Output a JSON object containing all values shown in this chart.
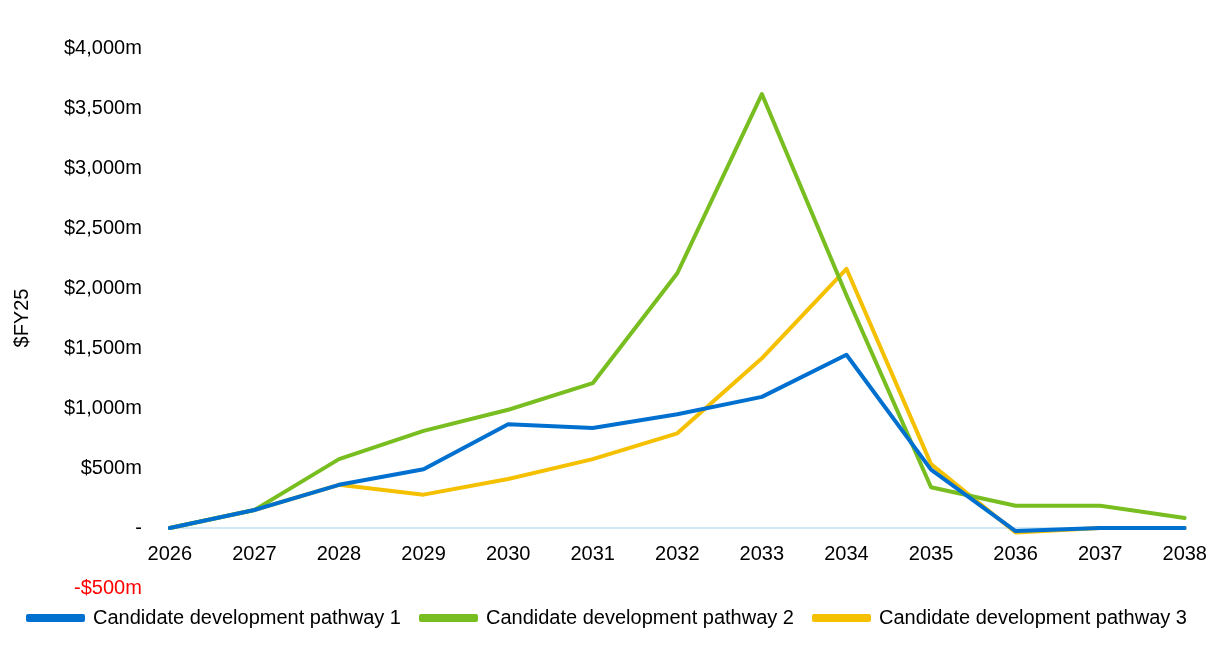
{
  "chart_data": {
    "type": "line",
    "ylabel": "$FY25",
    "categories": [
      "2026",
      "2027",
      "2028",
      "2029",
      "2030",
      "2031",
      "2032",
      "2033",
      "2034",
      "2035",
      "2036",
      "2037",
      "2038"
    ],
    "series": [
      {
        "name": "Candidate development pathway 1",
        "color": "#0070d0",
        "values": [
          0,
          150,
          360,
          490,
          865,
          833,
          948,
          1093,
          1444,
          486,
          -26,
          0,
          0
        ]
      },
      {
        "name": "Candidate development pathway 2",
        "color": "#78be20",
        "values": [
          0,
          150,
          574,
          809,
          985,
          1207,
          2123,
          3616,
          1940,
          340,
          186,
          186,
          84
        ]
      },
      {
        "name": "Candidate development pathway 3",
        "color": "#f5c000",
        "values": [
          0,
          150,
          360,
          278,
          408,
          574,
          789,
          1414,
          2160,
          532,
          -37,
          0,
          0
        ]
      }
    ],
    "ylim": [
      -500,
      4000
    ],
    "yticks": [
      {
        "value": -500,
        "label": "-$500m"
      },
      {
        "value": 0,
        "label": "-"
      },
      {
        "value": 500,
        "label": "$500m"
      },
      {
        "value": 1000,
        "label": "$1,000m"
      },
      {
        "value": 1500,
        "label": "$1,500m"
      },
      {
        "value": 2000,
        "label": "$2,000m"
      },
      {
        "value": 2500,
        "label": "$2,500m"
      },
      {
        "value": 3000,
        "label": "$3,000m"
      },
      {
        "value": 3500,
        "label": "$3,500m"
      },
      {
        "value": 4000,
        "label": "$4,000m"
      }
    ],
    "grid": false,
    "legend": "bottom",
    "marker": "none",
    "line_style": "solid"
  }
}
